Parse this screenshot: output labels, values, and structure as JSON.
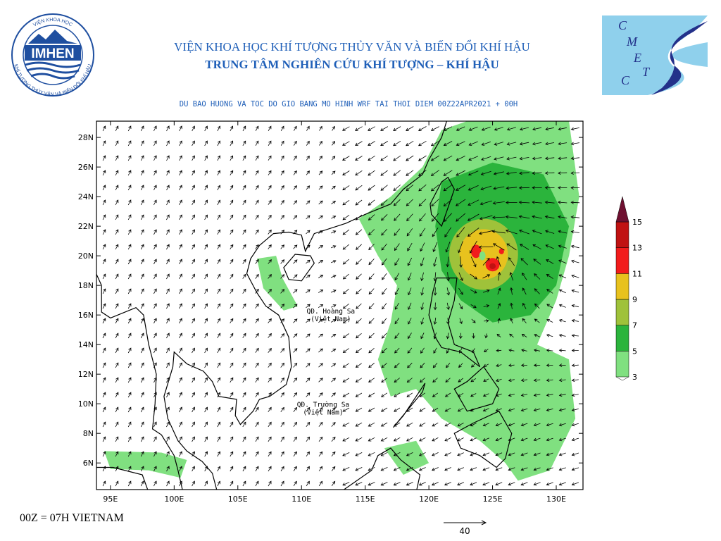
{
  "header": {
    "org_line1": "VIỆN KHOA HỌC KHÍ TƯỢNG THỦY VĂN VÀ BIẾN ĐỔI KHÍ HẬU",
    "org_line2": "TRUNG TÂM NGHIÊN CỨU KHÍ TƯỢNG – KHÍ HẬU",
    "logo_left_text": "IMHEN",
    "logo_left_ring_top": "VIỆN KHOA HỌC",
    "logo_left_ring_bottom": "KHÍ TƯỢNG THỦY VĂN VÀ BIẾN ĐỔI KHÍ HẬU",
    "logo_right_letters": [
      "C",
      "M",
      "E",
      "T",
      "C"
    ]
  },
  "map": {
    "title": "DU BAO HUONG VA TOC DO GIO BANG MO HINH WRF TAI THOI DIEM  00Z22APR2021 + 00H",
    "xlim": [
      93.9,
      132.1
    ],
    "ylim": [
      4.2,
      29.1
    ],
    "xticks": [
      {
        "value": 95,
        "label": "95E"
      },
      {
        "value": 100,
        "label": "100E"
      },
      {
        "value": 105,
        "label": "105E"
      },
      {
        "value": 110,
        "label": "110E"
      },
      {
        "value": 115,
        "label": "115E"
      },
      {
        "value": 120,
        "label": "120E"
      },
      {
        "value": 125,
        "label": "125E"
      },
      {
        "value": 130,
        "label": "130E"
      }
    ],
    "yticks": [
      {
        "value": 6,
        "label": "6N"
      },
      {
        "value": 8,
        "label": "8N"
      },
      {
        "value": 10,
        "label": "10N"
      },
      {
        "value": 12,
        "label": "12N"
      },
      {
        "value": 14,
        "label": "14N"
      },
      {
        "value": 16,
        "label": "16N"
      },
      {
        "value": 18,
        "label": "18N"
      },
      {
        "value": 20,
        "label": "20N"
      },
      {
        "value": 22,
        "label": "22N"
      },
      {
        "value": 24,
        "label": "24N"
      },
      {
        "value": 26,
        "label": "26N"
      },
      {
        "value": 28,
        "label": "28N"
      }
    ],
    "annotations": [
      {
        "lines": [
          "QĐ. Hoàng Sa",
          "(Việt Nam)"
        ],
        "lon": 112.3,
        "lat": 16.1
      },
      {
        "lines": [
          "QĐ. Trường Sa",
          "(Việt Nam)"
        ],
        "lon": 111.7,
        "lat": 9.8
      }
    ]
  },
  "colorbar": {
    "levels": [
      3,
      5,
      7,
      9,
      11,
      13,
      15
    ],
    "colors": [
      "#80e080",
      "#2bb43c",
      "#9fc23a",
      "#e8c21e",
      "#f21c1c",
      "#c01212",
      "#6e1030"
    ]
  },
  "footer": {
    "time_note": "00Z = 07H VIETNAM",
    "reference_vector": 40
  }
}
